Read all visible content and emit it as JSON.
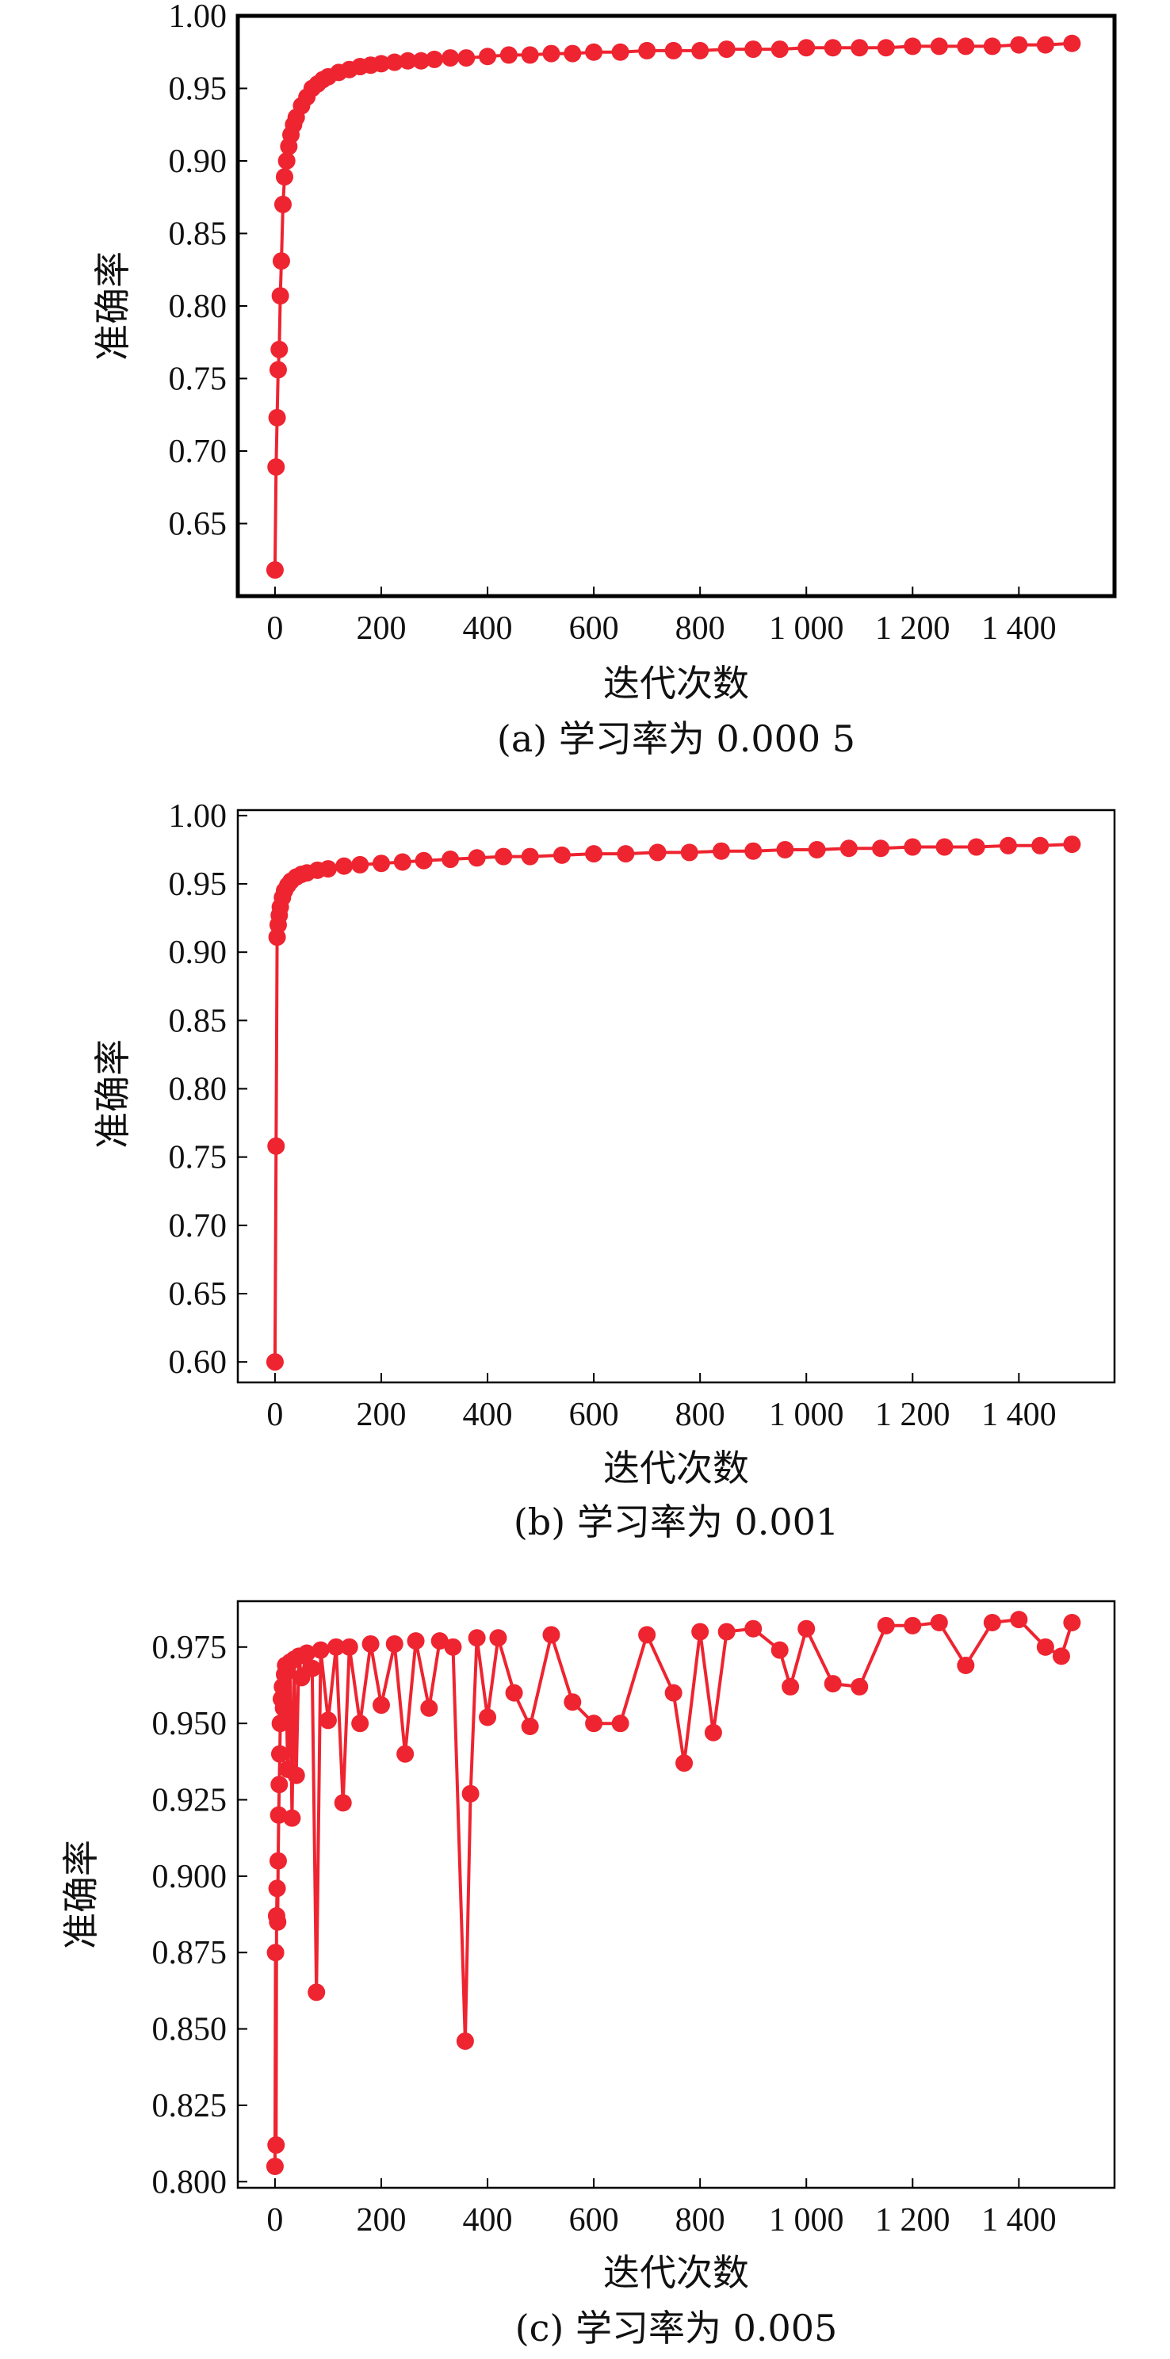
{
  "series_color": "#ee2430",
  "chart_data": [
    {
      "type": "line",
      "caption": "(a) 学习率为 0.000 5",
      "xlabel": "迭代次数",
      "ylabel": "准确率",
      "xlim": [
        -70,
        1580
      ],
      "ylim": [
        0.6,
        1.0
      ],
      "xticks": [
        0,
        200,
        400,
        600,
        800,
        1000,
        1200,
        1400
      ],
      "xtick_labels": [
        "0",
        "200",
        "400",
        "600",
        "800",
        "1 000",
        "1 200",
        "1 400"
      ],
      "yticks": [
        0.65,
        0.7,
        0.75,
        0.8,
        0.85,
        0.9,
        0.95,
        1.0
      ],
      "ytick_labels": [
        "0.65",
        "0.70",
        "0.75",
        "0.80",
        "0.85",
        "0.90",
        "0.95",
        "1.00"
      ],
      "grid": false,
      "legend": "none",
      "series": [
        {
          "x": [
            0,
            2,
            4,
            6,
            8,
            10,
            12,
            15,
            18,
            22,
            26,
            30,
            35,
            40,
            50,
            60,
            70,
            80,
            90,
            100,
            120,
            140,
            160,
            180,
            200,
            225,
            250,
            275,
            300,
            330,
            360,
            400,
            440,
            480,
            520,
            560,
            600,
            650,
            700,
            750,
            800,
            850,
            900,
            950,
            1000,
            1050,
            1100,
            1150,
            1200,
            1250,
            1300,
            1350,
            1400,
            1450,
            1500
          ],
          "y": [
            0.618,
            0.689,
            0.723,
            0.756,
            0.77,
            0.807,
            0.831,
            0.87,
            0.889,
            0.9,
            0.91,
            0.918,
            0.925,
            0.93,
            0.938,
            0.944,
            0.95,
            0.953,
            0.956,
            0.958,
            0.961,
            0.963,
            0.965,
            0.966,
            0.967,
            0.968,
            0.969,
            0.969,
            0.97,
            0.971,
            0.971,
            0.972,
            0.973,
            0.973,
            0.974,
            0.974,
            0.975,
            0.975,
            0.976,
            0.976,
            0.976,
            0.977,
            0.977,
            0.977,
            0.978,
            0.978,
            0.978,
            0.978,
            0.979,
            0.979,
            0.979,
            0.979,
            0.98,
            0.98,
            0.981
          ]
        }
      ]
    },
    {
      "type": "line",
      "caption": "(b) 学习率为 0.001",
      "xlabel": "迭代次数",
      "ylabel": "准确率",
      "xlim": [
        -70,
        1580
      ],
      "ylim": [
        0.585,
        1.004
      ],
      "xticks": [
        0,
        200,
        400,
        600,
        800,
        1000,
        1200,
        1400
      ],
      "xtick_labels": [
        "0",
        "200",
        "400",
        "600",
        "800",
        "1 000",
        "1 200",
        "1 400"
      ],
      "yticks": [
        0.6,
        0.65,
        0.7,
        0.75,
        0.8,
        0.85,
        0.9,
        0.95,
        1.0
      ],
      "ytick_labels": [
        "0.60",
        "0.65",
        "0.70",
        "0.75",
        "0.80",
        "0.85",
        "0.90",
        "0.95",
        "1.00"
      ],
      "grid": false,
      "legend": "none",
      "series": [
        {
          "x": [
            0,
            2,
            4,
            6,
            8,
            10,
            14,
            18,
            24,
            30,
            40,
            50,
            60,
            80,
            100,
            130,
            160,
            200,
            240,
            280,
            330,
            380,
            430,
            480,
            540,
            600,
            660,
            720,
            780,
            840,
            900,
            960,
            1020,
            1080,
            1140,
            1200,
            1260,
            1320,
            1380,
            1440,
            1500
          ],
          "y": [
            0.6,
            0.758,
            0.911,
            0.92,
            0.927,
            0.933,
            0.94,
            0.945,
            0.949,
            0.952,
            0.955,
            0.957,
            0.958,
            0.96,
            0.961,
            0.963,
            0.964,
            0.965,
            0.966,
            0.967,
            0.968,
            0.969,
            0.97,
            0.97,
            0.971,
            0.972,
            0.972,
            0.973,
            0.973,
            0.974,
            0.974,
            0.975,
            0.975,
            0.976,
            0.976,
            0.977,
            0.977,
            0.977,
            0.978,
            0.978,
            0.979
          ]
        }
      ]
    },
    {
      "type": "line",
      "caption": "(c) 学习率为 0.005",
      "xlabel": "迭代次数",
      "ylabel": "准确率",
      "xlim": [
        -70,
        1580
      ],
      "ylim": [
        0.798,
        0.99
      ],
      "xticks": [
        0,
        200,
        400,
        600,
        800,
        1000,
        1200,
        1400
      ],
      "xtick_labels": [
        "0",
        "200",
        "400",
        "600",
        "800",
        "1 000",
        "1 200",
        "1 400"
      ],
      "yticks": [
        0.8,
        0.825,
        0.85,
        0.875,
        0.9,
        0.925,
        0.95,
        0.975
      ],
      "ytick_labels": [
        "0.800",
        "0.825",
        "0.850",
        "0.875",
        "0.900",
        "0.925",
        "0.950",
        "0.975"
      ],
      "grid": false,
      "legend": "none",
      "series": [
        {
          "x": [
            0,
            1,
            2,
            3,
            4,
            5,
            6,
            7,
            8,
            9,
            10,
            12,
            14,
            16,
            18,
            20,
            24,
            28,
            32,
            36,
            40,
            45,
            50,
            60,
            70,
            78,
            86,
            100,
            115,
            128,
            140,
            160,
            180,
            200,
            225,
            245,
            265,
            290,
            310,
            335,
            358,
            368,
            380,
            400,
            420,
            450,
            480,
            520,
            560,
            600,
            650,
            700,
            750,
            770,
            800,
            825,
            850,
            900,
            950,
            970,
            1000,
            1050,
            1100,
            1150,
            1200,
            1250,
            1300,
            1350,
            1400,
            1450,
            1480,
            1500
          ],
          "y": [
            0.805,
            0.875,
            0.812,
            0.887,
            0.896,
            0.885,
            0.905,
            0.92,
            0.93,
            0.94,
            0.95,
            0.958,
            0.962,
            0.955,
            0.966,
            0.969,
            0.935,
            0.97,
            0.919,
            0.971,
            0.933,
            0.972,
            0.965,
            0.973,
            0.968,
            0.862,
            0.974,
            0.951,
            0.975,
            0.924,
            0.975,
            0.95,
            0.976,
            0.956,
            0.976,
            0.94,
            0.977,
            0.955,
            0.977,
            0.975,
            0.846,
            0.927,
            0.978,
            0.952,
            0.978,
            0.96,
            0.949,
            0.979,
            0.957,
            0.95,
            0.95,
            0.979,
            0.96,
            0.937,
            0.98,
            0.947,
            0.98,
            0.981,
            0.974,
            0.962,
            0.981,
            0.963,
            0.962,
            0.982,
            0.982,
            0.983,
            0.969,
            0.983,
            0.984,
            0.975,
            0.972,
            0.983
          ]
        }
      ]
    }
  ]
}
